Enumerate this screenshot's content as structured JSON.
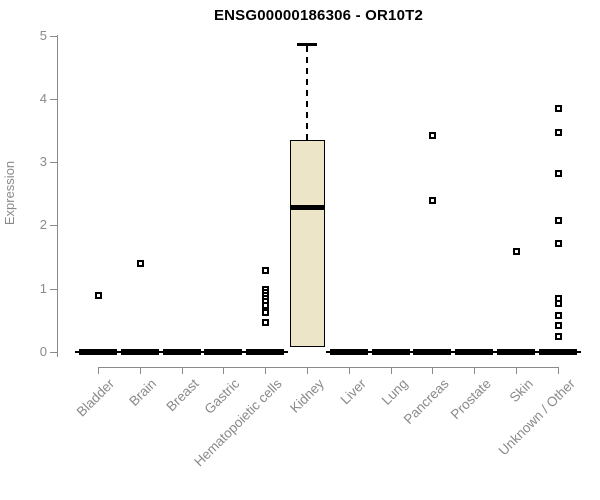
{
  "window": {
    "kind": "statistical-plot",
    "background_color": "#ffffff"
  },
  "colors": {
    "axis_and_labels": "#8a8a8a",
    "title_text": "#000000",
    "box_fill": "#ece5c8",
    "box_border": "#000000",
    "outlier_marker": "#000000"
  },
  "chart_data": {
    "type": "boxplot",
    "title": "ENSG00000186306 - OR10T2",
    "xlabel": "",
    "ylabel": "Expression",
    "ylim": [
      0,
      5
    ],
    "yticks": [
      0,
      1,
      2,
      3,
      4,
      5
    ],
    "grid": "off",
    "legend": "none",
    "categories": [
      "Bladder",
      "Brain",
      "Breast",
      "Gastric",
      "Hematopoietic cells",
      "Kidney",
      "Liver",
      "Lung",
      "Pancreas",
      "Prostate",
      "Skin",
      "Unknown / Other"
    ],
    "series": [
      {
        "category": "Bladder",
        "q1": 0,
        "median": 0,
        "q3": 0,
        "whisker_low": 0,
        "whisker_high": 0,
        "outliers": [
          0.9
        ]
      },
      {
        "category": "Brain",
        "q1": 0,
        "median": 0,
        "q3": 0,
        "whisker_low": 0,
        "whisker_high": 0,
        "outliers": [
          1.4
        ]
      },
      {
        "category": "Breast",
        "q1": 0,
        "median": 0,
        "q3": 0,
        "whisker_low": 0,
        "whisker_high": 0,
        "outliers": []
      },
      {
        "category": "Gastric",
        "q1": 0,
        "median": 0,
        "q3": 0,
        "whisker_low": 0,
        "whisker_high": 0,
        "outliers": []
      },
      {
        "category": "Hematopoietic cells",
        "q1": 0,
        "median": 0,
        "q3": 0,
        "whisker_low": 0,
        "whisker_high": 0,
        "outliers": [
          1.3,
          1.0,
          0.95,
          0.9,
          0.85,
          0.8,
          0.75,
          0.63,
          0.47
        ]
      },
      {
        "category": "Kidney",
        "q1": 0.08,
        "median": 2.28,
        "q3": 3.35,
        "whisker_low": 0.08,
        "whisker_high": 4.87,
        "outliers": []
      },
      {
        "category": "Liver",
        "q1": 0,
        "median": 0,
        "q3": 0,
        "whisker_low": 0,
        "whisker_high": 0,
        "outliers": []
      },
      {
        "category": "Lung",
        "q1": 0,
        "median": 0,
        "q3": 0,
        "whisker_low": 0,
        "whisker_high": 0,
        "outliers": []
      },
      {
        "category": "Pancreas",
        "q1": 0,
        "median": 0,
        "q3": 0,
        "whisker_low": 0,
        "whisker_high": 0,
        "outliers": [
          3.43,
          2.4
        ]
      },
      {
        "category": "Prostate",
        "q1": 0,
        "median": 0,
        "q3": 0,
        "whisker_low": 0,
        "whisker_high": 0,
        "outliers": []
      },
      {
        "category": "Skin",
        "q1": 0,
        "median": 0,
        "q3": 0,
        "whisker_low": 0,
        "whisker_high": 0,
        "outliers": [
          1.6
        ]
      },
      {
        "category": "Unknown / Other",
        "q1": 0,
        "median": 0,
        "q3": 0,
        "whisker_low": 0,
        "whisker_high": 0,
        "outliers": [
          3.85,
          3.48,
          2.83,
          2.09,
          1.72,
          0.85,
          0.77,
          0.58,
          0.43,
          0.25
        ]
      }
    ]
  }
}
